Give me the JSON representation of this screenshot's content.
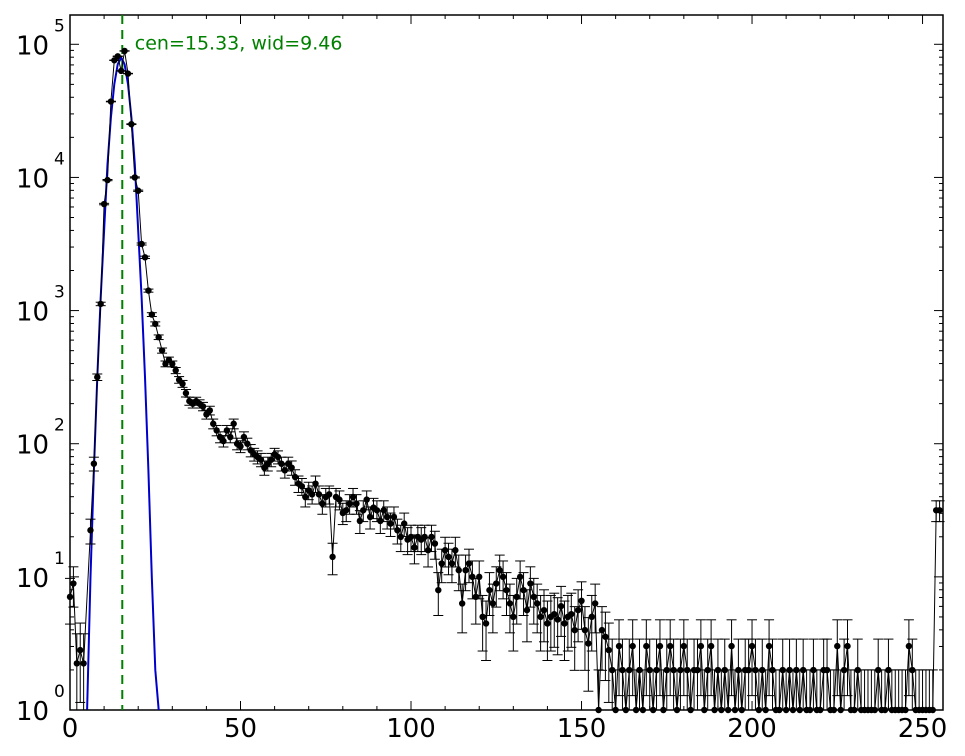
{
  "chart_data": {
    "type": "scatter",
    "title": "",
    "xlabel": "",
    "ylabel": "",
    "xlim": [
      0,
      256
    ],
    "ylim_log10": [
      0,
      5.22
    ],
    "yscale": "log",
    "grid": false,
    "legend": "none",
    "x_ticks": [
      {
        "value": 0,
        "label": "0"
      },
      {
        "value": 50,
        "label": "50"
      },
      {
        "value": 100,
        "label": "100"
      },
      {
        "value": 150,
        "label": "150"
      },
      {
        "value": 200,
        "label": "200"
      },
      {
        "value": 250,
        "label": "250"
      }
    ],
    "y_ticks": [
      {
        "exp": 0,
        "base": "10",
        "power": "0"
      },
      {
        "exp": 1,
        "base": "10",
        "power": "1"
      },
      {
        "exp": 2,
        "base": "10",
        "power": "2"
      },
      {
        "exp": 3,
        "base": "10",
        "power": "3"
      },
      {
        "exp": 4,
        "base": "10",
        "power": "4"
      },
      {
        "exp": 5,
        "base": "10",
        "power": "5"
      }
    ],
    "annotation": {
      "text": "cen=15.33, wid=9.46",
      "x": 19,
      "y_log10": 5.0
    },
    "center_line": {
      "x": 15.33,
      "color": "#008000"
    },
    "fit_curve": {
      "color": "#0000cc",
      "x": [
        5,
        6,
        7,
        8,
        9,
        10,
        11,
        12,
        13,
        14,
        15,
        16,
        17,
        18,
        19,
        20,
        21,
        22,
        23,
        24,
        25,
        26
      ],
      "y_log10": [
        0,
        1.0,
        1.8,
        2.5,
        3.1,
        3.6,
        4.1,
        4.45,
        4.7,
        4.85,
        4.9,
        4.85,
        4.7,
        4.45,
        4.1,
        3.6,
        3.1,
        2.5,
        1.8,
        1.0,
        0.3,
        0
      ]
    },
    "series": [
      {
        "color": "#000000",
        "points": [
          [
            0,
            0.85
          ],
          [
            1,
            0.95
          ],
          [
            2,
            0.35
          ],
          [
            3,
            0.45
          ],
          [
            4,
            0.35
          ],
          [
            6,
            1.35
          ],
          [
            7,
            1.85
          ],
          [
            8,
            2.5
          ],
          [
            9,
            3.05
          ],
          [
            10,
            3.8
          ],
          [
            11,
            3.98
          ],
          [
            12,
            4.57
          ],
          [
            13,
            4.88
          ],
          [
            14,
            4.91
          ],
          [
            15,
            4.8
          ],
          [
            16,
            4.95
          ],
          [
            17,
            4.78
          ],
          [
            18,
            4.4
          ],
          [
            19,
            4.0
          ],
          [
            20,
            3.9
          ],
          [
            21,
            3.5
          ],
          [
            22,
            3.4
          ],
          [
            23,
            3.15
          ],
          [
            24,
            2.97
          ],
          [
            25,
            2.9
          ],
          [
            26,
            2.8
          ],
          [
            27,
            2.7
          ],
          [
            28,
            2.6
          ],
          [
            29,
            2.63
          ],
          [
            30,
            2.6
          ],
          [
            31,
            2.55
          ],
          [
            32,
            2.48
          ],
          [
            33,
            2.45
          ],
          [
            34,
            2.38
          ],
          [
            35,
            2.32
          ],
          [
            36,
            2.3
          ],
          [
            37,
            2.32
          ],
          [
            38,
            2.3
          ],
          [
            39,
            2.28
          ],
          [
            40,
            2.22
          ],
          [
            41,
            2.25
          ],
          [
            42,
            2.15
          ],
          [
            43,
            2.1
          ],
          [
            44,
            2.05
          ],
          [
            45,
            2.02
          ],
          [
            46,
            2.1
          ],
          [
            47,
            2.05
          ],
          [
            48,
            2.15
          ],
          [
            49,
            2.0
          ],
          [
            50,
            1.98
          ],
          [
            51,
            2.05
          ],
          [
            52,
            2.0
          ],
          [
            53,
            1.95
          ],
          [
            54,
            1.92
          ],
          [
            55,
            1.9
          ],
          [
            56,
            1.88
          ],
          [
            57,
            1.82
          ],
          [
            58,
            1.85
          ],
          [
            59,
            1.88
          ],
          [
            60,
            1.92
          ],
          [
            61,
            1.9
          ],
          [
            62,
            1.85
          ],
          [
            63,
            1.8
          ],
          [
            64,
            1.85
          ],
          [
            65,
            1.82
          ],
          [
            66,
            1.75
          ],
          [
            67,
            1.7
          ],
          [
            68,
            1.68
          ],
          [
            69,
            1.6
          ],
          [
            70,
            1.65
          ],
          [
            71,
            1.62
          ],
          [
            72,
            1.7
          ],
          [
            73,
            1.62
          ],
          [
            74,
            1.55
          ],
          [
            75,
            1.6
          ],
          [
            76,
            1.62
          ],
          [
            77,
            1.15
          ],
          [
            78,
            1.6
          ],
          [
            79,
            1.58
          ],
          [
            80,
            1.48
          ],
          [
            81,
            1.5
          ],
          [
            82,
            1.55
          ],
          [
            83,
            1.6
          ],
          [
            84,
            1.55
          ],
          [
            85,
            1.42
          ],
          [
            86,
            1.5
          ],
          [
            87,
            1.58
          ],
          [
            88,
            1.45
          ],
          [
            89,
            1.52
          ],
          [
            90,
            1.5
          ],
          [
            91,
            1.42
          ],
          [
            92,
            1.5
          ],
          [
            93,
            1.45
          ],
          [
            94,
            1.4
          ],
          [
            95,
            1.45
          ],
          [
            96,
            1.35
          ],
          [
            97,
            1.3
          ],
          [
            98,
            1.4
          ],
          [
            99,
            1.28
          ],
          [
            100,
            1.3
          ],
          [
            101,
            1.22
          ],
          [
            102,
            1.3
          ],
          [
            103,
            1.28
          ],
          [
            104,
            1.3
          ],
          [
            105,
            1.2
          ],
          [
            106,
            1.3
          ],
          [
            107,
            1.25
          ],
          [
            108,
            0.9
          ],
          [
            109,
            1.1
          ],
          [
            110,
            1.2
          ],
          [
            111,
            1.15
          ],
          [
            112,
            1.1
          ],
          [
            113,
            1.2
          ],
          [
            114,
            1.05
          ],
          [
            115,
            0.8
          ],
          [
            116,
            1.05
          ],
          [
            117,
            1.1
          ],
          [
            118,
            1.0
          ],
          [
            119,
            0.85
          ],
          [
            120,
            1.0
          ],
          [
            121,
            0.7
          ],
          [
            122,
            0.65
          ],
          [
            123,
            0.9
          ],
          [
            124,
            0.8
          ],
          [
            125,
            0.95
          ],
          [
            126,
            1.05
          ],
          [
            127,
            1.0
          ],
          [
            128,
            0.9
          ],
          [
            129,
            0.8
          ],
          [
            130,
            0.7
          ],
          [
            131,
            0.85
          ],
          [
            132,
            1.0
          ],
          [
            133,
            0.9
          ],
          [
            134,
            0.75
          ],
          [
            135,
            0.95
          ],
          [
            136,
            0.85
          ],
          [
            137,
            0.8
          ],
          [
            138,
            0.7
          ],
          [
            139,
            0.75
          ],
          [
            140,
            0.65
          ],
          [
            141,
            0.7
          ],
          [
            142,
            0.72
          ],
          [
            143,
            0.68
          ],
          [
            144,
            0.78
          ],
          [
            145,
            0.65
          ],
          [
            146,
            0.7
          ],
          [
            147,
            0.72
          ],
          [
            148,
            0.6
          ],
          [
            149,
            0.75
          ],
          [
            150,
            0.82
          ],
          [
            151,
            0.6
          ],
          [
            152,
            0.5
          ],
          [
            153,
            0.7
          ],
          [
            154,
            0.8
          ],
          [
            155,
            0.0
          ],
          [
            156,
            0.6
          ],
          [
            157,
            0.55
          ],
          [
            158,
            0.45
          ],
          [
            159,
            0.3
          ],
          [
            160,
            0.0
          ],
          [
            161,
            0.48
          ],
          [
            162,
            0.3
          ],
          [
            163,
            0.0
          ],
          [
            164,
            0.3
          ],
          [
            165,
            0.48
          ],
          [
            166,
            0.0
          ],
          [
            167,
            0.3
          ],
          [
            168,
            0.0
          ],
          [
            169,
            0.48
          ],
          [
            170,
            0.3
          ],
          [
            171,
            0.0
          ],
          [
            172,
            0.3
          ],
          [
            173,
            0.48
          ],
          [
            174,
            0.0
          ],
          [
            175,
            0.3
          ],
          [
            176,
            0.48
          ],
          [
            177,
            0.3
          ],
          [
            178,
            0.0
          ],
          [
            179,
            0.3
          ],
          [
            180,
            0.48
          ],
          [
            181,
            0.3
          ],
          [
            182,
            0.0
          ],
          [
            183,
            0.3
          ],
          [
            184,
            0.3
          ],
          [
            185,
            0.48
          ],
          [
            186,
            0.0
          ],
          [
            187,
            0.3
          ],
          [
            188,
            0.48
          ],
          [
            189,
            0.0
          ],
          [
            190,
            0.3
          ],
          [
            191,
            0.0
          ],
          [
            192,
            0.3
          ],
          [
            193,
            0.0
          ],
          [
            194,
            0.48
          ],
          [
            195,
            0.0
          ],
          [
            196,
            0.3
          ],
          [
            197,
            0.0
          ],
          [
            198,
            0.3
          ],
          [
            199,
            0.3
          ],
          [
            200,
            0.48
          ],
          [
            201,
            0.3
          ],
          [
            202,
            0.0
          ],
          [
            203,
            0.3
          ],
          [
            204,
            0.0
          ],
          [
            205,
            0.48
          ],
          [
            206,
            0.3
          ],
          [
            207,
            0.0
          ],
          [
            208,
            0.0
          ],
          [
            209,
            0.3
          ],
          [
            210,
            0.0
          ],
          [
            211,
            0.3
          ],
          [
            212,
            0.0
          ],
          [
            213,
            0.3
          ],
          [
            214,
            0.0
          ],
          [
            215,
            0.3
          ],
          [
            216,
            0.0
          ],
          [
            217,
            0.0
          ],
          [
            218,
            0.3
          ],
          [
            219,
            0.0
          ],
          [
            220,
            0.0
          ],
          [
            221,
            0.3
          ],
          [
            222,
            0.3
          ],
          [
            223,
            0.0
          ],
          [
            224,
            0.0
          ],
          [
            225,
            0.48
          ],
          [
            226,
            0.0
          ],
          [
            227,
            0.3
          ],
          [
            228,
            0.48
          ],
          [
            229,
            0.0
          ],
          [
            230,
            0.0
          ],
          [
            231,
            0.3
          ],
          [
            232,
            0.0
          ],
          [
            233,
            0.0
          ],
          [
            234,
            0.0
          ],
          [
            235,
            0.0
          ],
          [
            236,
            0.0
          ],
          [
            237,
            0.3
          ],
          [
            238,
            0.0
          ],
          [
            239,
            0.0
          ],
          [
            240,
            0.3
          ],
          [
            241,
            0.0
          ],
          [
            242,
            0.0
          ],
          [
            243,
            0.0
          ],
          [
            244,
            0.0
          ],
          [
            245,
            0.0
          ],
          [
            246,
            0.48
          ],
          [
            247,
            0.3
          ],
          [
            248,
            0.0
          ],
          [
            249,
            0.0
          ],
          [
            250,
            0.0
          ],
          [
            251,
            0.0
          ],
          [
            252,
            0.0
          ],
          [
            253,
            0.0
          ],
          [
            254,
            1.5
          ],
          [
            255,
            1.5
          ]
        ]
      }
    ]
  }
}
